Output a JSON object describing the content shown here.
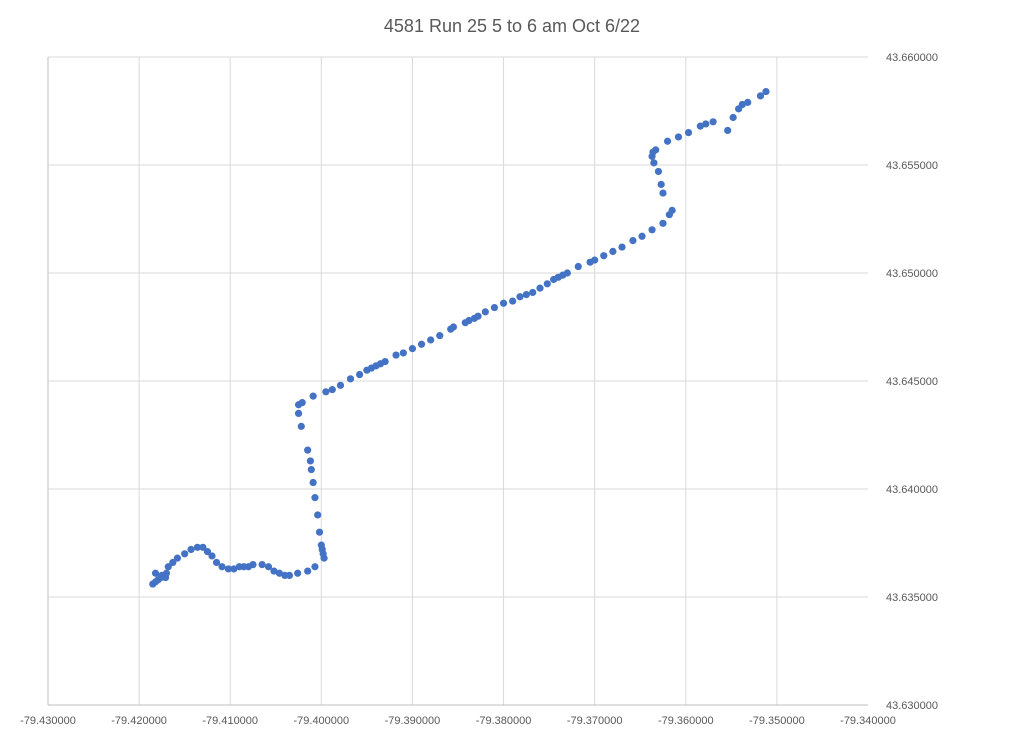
{
  "chart_data": {
    "type": "scatter",
    "title": "4581 Run 25 5 to 6 am Oct 6/22",
    "xlabel": "",
    "ylabel": "",
    "xlim": [
      -79.43,
      -79.34
    ],
    "ylim": [
      43.63,
      43.66
    ],
    "grid": true,
    "legend": "none",
    "marker_color": "#4472C4",
    "x_ticks": [
      "-79.430000",
      "-79.420000",
      "-79.410000",
      "-79.400000",
      "-79.390000",
      "-79.380000",
      "-79.370000",
      "-79.360000",
      "-79.350000",
      "-79.340000"
    ],
    "y_ticks": [
      "43.630000",
      "43.635000",
      "43.640000",
      "43.645000",
      "43.650000",
      "43.655000",
      "43.660000"
    ],
    "series": [
      {
        "points": [
          [
            -79.4185,
            43.6356
          ],
          [
            -79.4182,
            43.6357
          ],
          [
            -79.4179,
            43.6358
          ],
          [
            -79.4176,
            43.6359
          ],
          [
            -79.4173,
            43.636
          ],
          [
            -79.417,
            43.6361
          ],
          [
            -79.4182,
            43.6361
          ],
          [
            -79.4175,
            43.636
          ],
          [
            -79.4171,
            43.6359
          ],
          [
            -79.4168,
            43.6364
          ],
          [
            -79.4163,
            43.6366
          ],
          [
            -79.4158,
            43.6368
          ],
          [
            -79.415,
            43.637
          ],
          [
            -79.4143,
            43.6372
          ],
          [
            -79.4136,
            43.6373
          ],
          [
            -79.413,
            43.6373
          ],
          [
            -79.4125,
            43.6371
          ],
          [
            -79.412,
            43.6369
          ],
          [
            -79.4115,
            43.6366
          ],
          [
            -79.4109,
            43.6364
          ],
          [
            -79.4102,
            43.6363
          ],
          [
            -79.4096,
            43.6363
          ],
          [
            -79.409,
            43.6364
          ],
          [
            -79.4085,
            43.6364
          ],
          [
            -79.408,
            43.6364
          ],
          [
            -79.4075,
            43.6365
          ],
          [
            -79.4065,
            43.6365
          ],
          [
            -79.4058,
            43.6364
          ],
          [
            -79.4052,
            43.6362
          ],
          [
            -79.4046,
            43.6361
          ],
          [
            -79.404,
            43.636
          ],
          [
            -79.4035,
            43.636
          ],
          [
            -79.4026,
            43.6361
          ],
          [
            -79.4015,
            43.6362
          ],
          [
            -79.4007,
            43.6364
          ],
          [
            -79.3997,
            43.6368
          ],
          [
            -79.3998,
            43.637
          ],
          [
            -79.3999,
            43.6372
          ],
          [
            -79.4,
            43.6374
          ],
          [
            -79.4002,
            43.638
          ],
          [
            -79.4004,
            43.6388
          ],
          [
            -79.4007,
            43.6396
          ],
          [
            -79.4009,
            43.6403
          ],
          [
            -79.4011,
            43.6409
          ],
          [
            -79.4012,
            43.6413
          ],
          [
            -79.4015,
            43.6418
          ],
          [
            -79.4022,
            43.6429
          ],
          [
            -79.4025,
            43.6435
          ],
          [
            -79.4025,
            43.6439
          ],
          [
            -79.4021,
            43.644
          ],
          [
            -79.4009,
            43.6443
          ],
          [
            -79.3995,
            43.6445
          ],
          [
            -79.3988,
            43.6446
          ],
          [
            -79.3979,
            43.6448
          ],
          [
            -79.3968,
            43.6451
          ],
          [
            -79.3958,
            43.6453
          ],
          [
            -79.395,
            43.6455
          ],
          [
            -79.3945,
            43.6456
          ],
          [
            -79.394,
            43.6457
          ],
          [
            -79.3935,
            43.6458
          ],
          [
            -79.393,
            43.6459
          ],
          [
            -79.3918,
            43.6462
          ],
          [
            -79.391,
            43.6463
          ],
          [
            -79.39,
            43.6465
          ],
          [
            -79.389,
            43.6467
          ],
          [
            -79.388,
            43.6469
          ],
          [
            -79.387,
            43.6471
          ],
          [
            -79.3858,
            43.6474
          ],
          [
            -79.3855,
            43.6475
          ],
          [
            -79.3842,
            43.6477
          ],
          [
            -79.3838,
            43.6478
          ],
          [
            -79.3832,
            43.6479
          ],
          [
            -79.3828,
            43.648
          ],
          [
            -79.382,
            43.6482
          ],
          [
            -79.381,
            43.6484
          ],
          [
            -79.38,
            43.6486
          ],
          [
            -79.379,
            43.6487
          ],
          [
            -79.3782,
            43.6489
          ],
          [
            -79.3775,
            43.649
          ],
          [
            -79.3768,
            43.6491
          ],
          [
            -79.376,
            43.6493
          ],
          [
            -79.3752,
            43.6495
          ],
          [
            -79.3745,
            43.6497
          ],
          [
            -79.374,
            43.6498
          ],
          [
            -79.3735,
            43.6499
          ],
          [
            -79.373,
            43.65
          ],
          [
            -79.3718,
            43.6503
          ],
          [
            -79.3705,
            43.6505
          ],
          [
            -79.37,
            43.6506
          ],
          [
            -79.369,
            43.6508
          ],
          [
            -79.368,
            43.651
          ],
          [
            -79.367,
            43.6512
          ],
          [
            -79.3658,
            43.6515
          ],
          [
            -79.3648,
            43.6517
          ],
          [
            -79.3637,
            43.652
          ],
          [
            -79.3625,
            43.6523
          ],
          [
            -79.3618,
            43.6527
          ],
          [
            -79.3615,
            43.6529
          ],
          [
            -79.3625,
            43.6537
          ],
          [
            -79.3627,
            43.6541
          ],
          [
            -79.363,
            43.6547
          ],
          [
            -79.3635,
            43.6551
          ],
          [
            -79.3637,
            43.6554
          ],
          [
            -79.3636,
            43.6556
          ],
          [
            -79.3633,
            43.6557
          ],
          [
            -79.362,
            43.6561
          ],
          [
            -79.3608,
            43.6563
          ],
          [
            -79.3597,
            43.6565
          ],
          [
            -79.3584,
            43.6568
          ],
          [
            -79.3578,
            43.6569
          ],
          [
            -79.357,
            43.657
          ],
          [
            -79.3554,
            43.6566
          ],
          [
            -79.3548,
            43.6572
          ],
          [
            -79.3542,
            43.6576
          ],
          [
            -79.3538,
            43.6578
          ],
          [
            -79.3532,
            43.6579
          ],
          [
            -79.3518,
            43.6582
          ],
          [
            -79.3512,
            43.6584
          ]
        ]
      }
    ]
  }
}
